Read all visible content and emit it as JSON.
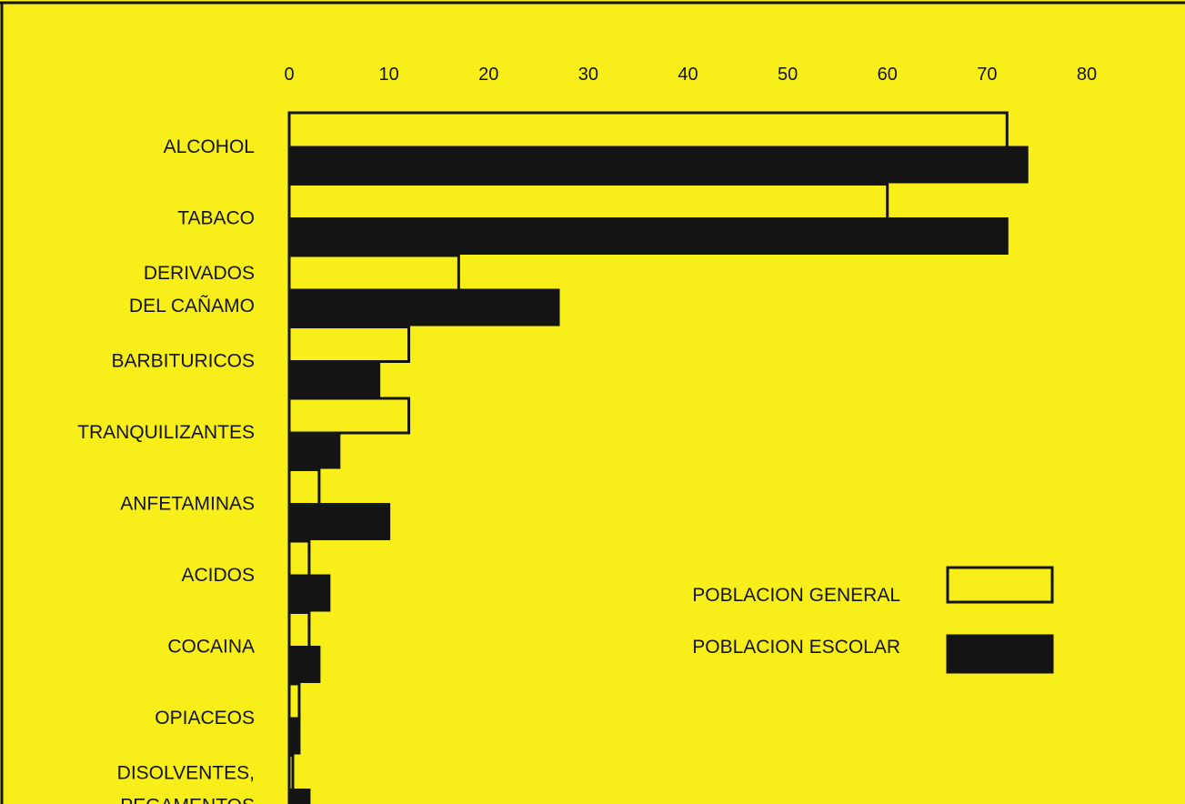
{
  "chart_data": {
    "type": "bar",
    "orientation": "horizontal",
    "xlim": [
      0,
      80
    ],
    "x_ticks": [
      "0",
      "10",
      "20",
      "30",
      "40",
      "50",
      "60",
      "70",
      "80"
    ],
    "categories": [
      "ALCOHOL",
      "TABACO",
      "DERIVADOS DEL CAÑAMO",
      "BARBITURICOS",
      "TRANQUILIZANTES",
      "ANFETAMINAS",
      "ACIDOS",
      "COCAINA",
      "OPIACEOS",
      "DISOLVENTES, PEGAMENTOS"
    ],
    "category_lines": [
      [
        "ALCOHOL"
      ],
      [
        "TABACO"
      ],
      [
        "DERIVADOS",
        "DEL CAÑAMO"
      ],
      [
        "BARBITURICOS"
      ],
      [
        "TRANQUILIZANTES"
      ],
      [
        "ANFETAMINAS"
      ],
      [
        "ACIDOS"
      ],
      [
        "COCAINA"
      ],
      [
        "OPIACEOS"
      ],
      [
        "DISOLVENTES,",
        "PEGAMENTOS"
      ]
    ],
    "series": [
      {
        "name": "POBLACION GENERAL",
        "values": [
          72,
          60,
          17,
          12,
          12,
          3,
          2,
          2,
          1,
          0
        ],
        "fill": "#f7ee1a",
        "stroke": "#141414"
      },
      {
        "name": "POBLACION ESCOLAR",
        "values": [
          74,
          72,
          27,
          9,
          5,
          10,
          4,
          3,
          1,
          2
        ],
        "fill": "#141414",
        "stroke": "#141414"
      }
    ],
    "legend": "bottom-right",
    "grid": false
  },
  "colors": {
    "background": "#f7ee1a",
    "ink": "#141414"
  }
}
